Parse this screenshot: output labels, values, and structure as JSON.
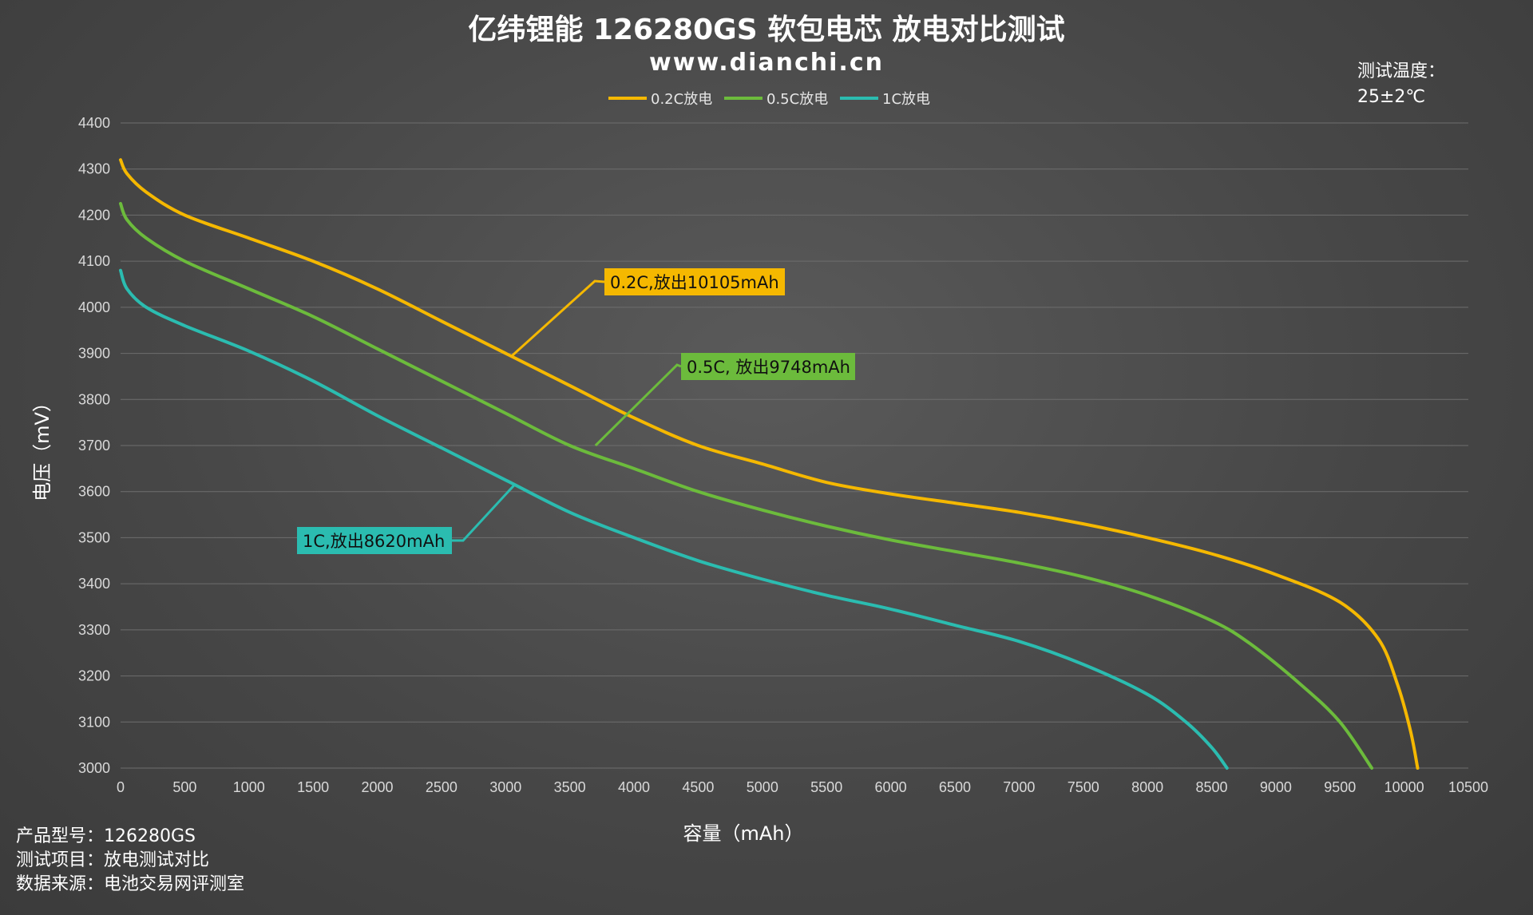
{
  "title": "亿纬锂能 126280GS 软包电芯 放电对比测试",
  "subtitle": "www.dianchi.cn",
  "temperature": {
    "label": "测试温度：",
    "value": "25±2℃"
  },
  "info": [
    {
      "label": "产品型号：",
      "value": "126280GS"
    },
    {
      "label": "测试项目：",
      "value": "放电测试对比"
    },
    {
      "label": "数据来源：",
      "value": "电池交易网评测室"
    }
  ],
  "chart_data": {
    "type": "line",
    "xlabel": "容量（mAh）",
    "ylabel": "电压（mV）",
    "xlim": [
      0,
      10500
    ],
    "ylim": [
      3000,
      4400
    ],
    "xticks": [
      "0",
      "500",
      "1000",
      "1500",
      "2000",
      "2500",
      "3000",
      "3500",
      "4000",
      "4500",
      "5000",
      "5500",
      "6000",
      "6500",
      "7000",
      "7500",
      "8000",
      "8500",
      "9000",
      "9500",
      "10000",
      "10500"
    ],
    "yticks": [
      "3000",
      "3100",
      "3200",
      "3300",
      "3400",
      "3500",
      "3600",
      "3700",
      "3800",
      "3900",
      "4000",
      "4100",
      "4200",
      "4300",
      "4400"
    ],
    "grid": "horizontal",
    "legend_position": "top-center",
    "series": [
      {
        "name": "0.2C放电",
        "color": "#f5b800",
        "x": [
          0,
          50,
          200,
          500,
          1000,
          1500,
          2000,
          2500,
          3000,
          3500,
          4000,
          4500,
          5000,
          5500,
          6000,
          6500,
          7000,
          7500,
          8000,
          8500,
          9000,
          9500,
          9800,
          9950,
          10050,
          10105
        ],
        "y": [
          4320,
          4290,
          4250,
          4200,
          4150,
          4100,
          4040,
          3970,
          3900,
          3830,
          3760,
          3700,
          3660,
          3620,
          3595,
          3575,
          3555,
          3530,
          3500,
          3465,
          3420,
          3360,
          3280,
          3180,
          3080,
          3000
        ]
      },
      {
        "name": "0.5C放电",
        "color": "#6cbb3c",
        "x": [
          0,
          50,
          200,
          500,
          1000,
          1500,
          2000,
          2500,
          3000,
          3500,
          4000,
          4500,
          5000,
          5500,
          6000,
          6500,
          7000,
          7500,
          8000,
          8500,
          8800,
          9200,
          9500,
          9748
        ],
        "y": [
          4225,
          4190,
          4150,
          4100,
          4040,
          3980,
          3910,
          3840,
          3770,
          3700,
          3650,
          3600,
          3560,
          3525,
          3495,
          3470,
          3445,
          3415,
          3375,
          3320,
          3270,
          3180,
          3100,
          3000
        ]
      },
      {
        "name": "1C放电",
        "color": "#2bbcb0",
        "x": [
          0,
          50,
          200,
          500,
          1000,
          1500,
          2000,
          2500,
          3000,
          3500,
          4000,
          4500,
          5000,
          5500,
          6000,
          6500,
          7000,
          7500,
          8000,
          8300,
          8500,
          8620
        ],
        "y": [
          4080,
          4040,
          4000,
          3960,
          3905,
          3840,
          3765,
          3695,
          3625,
          3555,
          3500,
          3450,
          3410,
          3375,
          3345,
          3310,
          3275,
          3225,
          3160,
          3100,
          3045,
          3000
        ]
      }
    ],
    "annotations": [
      {
        "text": "0.2C,放出10105mAh",
        "series": 0,
        "point": [
          3050,
          3895
        ],
        "color": "#f5b800"
      },
      {
        "text": "0.5C, 放出9748mAh",
        "series": 1,
        "point": [
          3700,
          3700
        ],
        "color": "#6cbb3c"
      },
      {
        "text": "1C,放出8620mAh",
        "series": 2,
        "point": [
          3070,
          3615
        ],
        "color": "#2bbcb0"
      }
    ]
  }
}
